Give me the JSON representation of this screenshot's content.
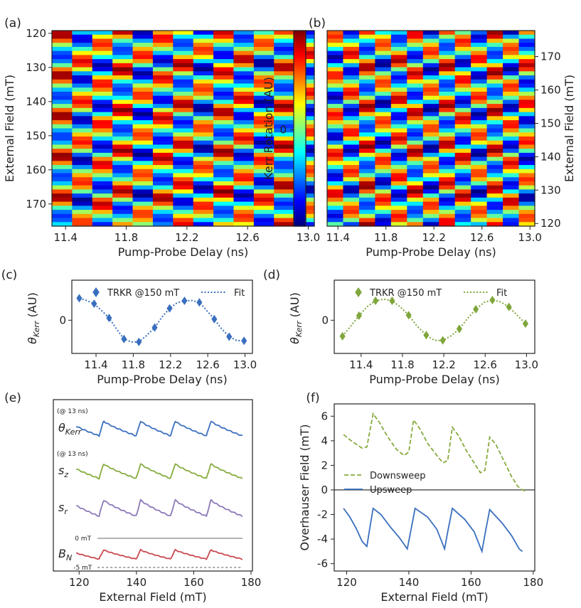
{
  "chart_data": [
    {
      "panel": "a",
      "type": "heatmap",
      "panel_label": "(a)",
      "xlabel": "Pump-Probe Delay (ns)",
      "ylabel": "External Field (mT)",
      "xticks": [
        "11.4",
        "11.8",
        "12.2",
        "12.6",
        "13.0"
      ],
      "xtick_values": [
        11.4,
        11.8,
        12.2,
        12.6,
        13.0
      ],
      "xlim": [
        11.31,
        13.04
      ],
      "yticks": [
        "120",
        "130",
        "140",
        "150",
        "160",
        "170"
      ],
      "ytick_values": [
        120,
        130,
        140,
        150,
        160,
        170
      ],
      "ylim": [
        176.5,
        119.2
      ],
      "field_start": 176.5,
      "field_end": 119.2,
      "rows": 48,
      "cols": 13
    },
    {
      "panel": "colorbar",
      "type": "heatmap",
      "label": "Kerr Rotation (AU)",
      "tick": "0",
      "colormap": "jet"
    },
    {
      "panel": "b",
      "type": "heatmap",
      "panel_label": "(b)",
      "xlabel": "Pump-Probe Delay (ns)",
      "ylabel": "External Field (mT)",
      "xticks": [
        "11.4",
        "11.8",
        "12.2",
        "12.6",
        "13.0"
      ],
      "xtick_values": [
        11.4,
        11.8,
        12.2,
        12.6,
        13.0
      ],
      "xlim": [
        11.31,
        13.04
      ],
      "yticks": [
        "120",
        "130",
        "140",
        "150",
        "160",
        "170"
      ],
      "ytick_values": [
        120,
        130,
        140,
        150,
        160,
        170
      ],
      "ylim": [
        119.2,
        177.8
      ],
      "field_start": 177.8,
      "field_end": 119.2,
      "rows": 48,
      "cols": 13
    },
    {
      "panel": "c",
      "type": "scatter",
      "panel_label": "(c)",
      "xlabel": "Pump-Probe Delay (ns)",
      "ylabel": "θ_Kerr (AU)",
      "ylabel_main": "θ",
      "ylabel_sub": "Kerr",
      "ylabel_unit": " (AU)",
      "yticks": [
        "0"
      ],
      "xticks": [
        "11.4",
        "11.8",
        "12.2",
        "12.6",
        "13.0"
      ],
      "xtick_values": [
        11.4,
        11.8,
        12.2,
        12.6,
        13.0
      ],
      "xlim": [
        11.14,
        13.08
      ],
      "ylim": [
        -1.45,
        1.75
      ],
      "color": "#3a6fbf",
      "legend": [
        "TRKR @150 mT",
        "Fit"
      ],
      "x": [
        11.22,
        11.38,
        11.54,
        11.7,
        11.86,
        12.03,
        12.19,
        12.35,
        12.51,
        12.67,
        12.83,
        12.99
      ],
      "y": [
        0.96,
        0.72,
        0.1,
        -0.82,
        -0.95,
        -0.32,
        0.52,
        0.85,
        0.78,
        0.05,
        -0.72,
        -0.9
      ],
      "fit_x": [
        11.22,
        11.3,
        11.38,
        11.46,
        11.54,
        11.62,
        11.7,
        11.78,
        11.86,
        11.94,
        12.03,
        12.11,
        12.19,
        12.27,
        12.35,
        12.43,
        12.51,
        12.59,
        12.67,
        12.75,
        12.83,
        12.91,
        12.99
      ],
      "fit_y": [
        0.96,
        0.86,
        0.72,
        0.42,
        0.1,
        -0.38,
        -0.82,
        -0.95,
        -0.95,
        -0.68,
        -0.32,
        0.15,
        0.52,
        0.76,
        0.85,
        0.86,
        0.78,
        0.42,
        0.05,
        -0.38,
        -0.72,
        -0.88,
        -0.9
      ]
    },
    {
      "panel": "d",
      "type": "scatter",
      "panel_label": "(d)",
      "xlabel": "Pump-Probe Delay (ns)",
      "ylabel": "θ_Kerr (AU)",
      "ylabel_main": "θ",
      "ylabel_sub": "Kerr",
      "ylabel_unit": " (AU)",
      "yticks": [
        "0"
      ],
      "xticks": [
        "11.4",
        "11.8",
        "12.2",
        "12.6",
        "13.0"
      ],
      "xtick_values": [
        11.4,
        11.8,
        12.2,
        12.6,
        13.0
      ],
      "xlim": [
        11.14,
        13.08
      ],
      "ylim": [
        -1.45,
        1.75
      ],
      "color": "#7fa63b",
      "legend": [
        "TRKR @150 mT",
        "Fit"
      ],
      "x": [
        11.22,
        11.38,
        11.54,
        11.7,
        11.86,
        12.03,
        12.19,
        12.35,
        12.51,
        12.67,
        12.83,
        12.99
      ],
      "y": [
        -0.7,
        0.2,
        0.85,
        0.85,
        0.22,
        -0.65,
        -0.88,
        -0.38,
        0.48,
        0.88,
        0.58,
        -0.15
      ],
      "fit_x": [
        11.22,
        11.3,
        11.38,
        11.46,
        11.54,
        11.62,
        11.7,
        11.78,
        11.86,
        11.94,
        12.03,
        12.11,
        12.19,
        12.27,
        12.35,
        12.43,
        12.51,
        12.59,
        12.67,
        12.75,
        12.83,
        12.91,
        12.99
      ],
      "fit_y": [
        -0.7,
        -0.25,
        0.2,
        0.6,
        0.85,
        0.92,
        0.85,
        0.58,
        0.22,
        -0.25,
        -0.65,
        -0.88,
        -0.88,
        -0.68,
        -0.38,
        0.08,
        0.48,
        0.78,
        0.88,
        0.8,
        0.58,
        0.22,
        -0.15
      ]
    },
    {
      "panel": "e",
      "type": "line",
      "panel_label": "(e)",
      "xlabel": "External Field (mT)",
      "xticks": [
        "120",
        "140",
        "160",
        "180"
      ],
      "xtick_values": [
        120,
        140,
        160,
        180
      ],
      "xlim": [
        111,
        180.5
      ],
      "traces_x_range": [
        119,
        177
      ],
      "cusps": [
        127,
        140,
        152,
        164.5,
        177
      ],
      "series": [
        {
          "name": "θKerr",
          "label_main": "θ",
          "label_sub": "Kerr",
          "note": "(@ 13 ns)",
          "color": "#3a6fbf"
        },
        {
          "name": "sz",
          "label_main": "s",
          "label_sub": "z",
          "note": "(@ 13 ns)",
          "color": "#86ab3e"
        },
        {
          "name": "sr",
          "label_main": "s",
          "label_sub": "r",
          "note": "",
          "color": "#8c78b8"
        },
        {
          "name": "BN",
          "label_main": "B",
          "label_sub": "N",
          "note": "",
          "color": "#c9484f"
        }
      ],
      "refs": [
        {
          "label": "0 mT",
          "style": "solid"
        },
        {
          "label": "-5 mT",
          "style": "dashed"
        }
      ]
    },
    {
      "panel": "f",
      "type": "line",
      "panel_label": "(f)",
      "xlabel": "External Field (mT)",
      "ylabel": "Overhauser Field (mT)",
      "xticks": [
        "120",
        "140",
        "160",
        "180"
      ],
      "xtick_values": [
        120,
        140,
        160,
        180
      ],
      "yticks": [
        "6",
        "4",
        "2",
        "0",
        "-2",
        "-4",
        "-6"
      ],
      "ytick_values": [
        6,
        4,
        2,
        0,
        -2,
        -4,
        -6
      ],
      "xlim": [
        116,
        180.5
      ],
      "ylim": [
        -6.6,
        7.0
      ],
      "series": [
        {
          "name": "Downsweep",
          "style": "dashed",
          "color": "#86ab3e",
          "x": [
            119,
            122,
            125,
            126.5,
            128.5,
            130.5,
            133,
            136,
            138.5,
            140,
            141.5,
            143.5,
            146,
            149,
            151,
            152.5,
            154,
            156,
            158.5,
            161,
            163,
            164.5,
            166,
            168,
            170.5,
            173,
            175,
            176.5,
            177.5
          ],
          "y": [
            4.5,
            3.9,
            3.4,
            3.5,
            6.2,
            5.5,
            4.4,
            3.3,
            2.8,
            3.1,
            5.7,
            5.0,
            3.8,
            2.8,
            2.2,
            2.4,
            5.1,
            4.4,
            3.2,
            2.2,
            1.4,
            1.6,
            4.3,
            3.7,
            2.4,
            1.1,
            0.3,
            0.0,
            -0.1
          ]
        },
        {
          "name": "Upsweep",
          "style": "solid",
          "color": "#3a6fbf",
          "x": [
            119,
            121,
            123,
            125,
            126.5,
            127.5,
            128.5,
            131,
            134,
            137,
            139.5,
            140.5,
            142,
            146,
            149,
            151.5,
            152.5,
            154,
            158,
            161,
            163.5,
            164.5,
            166,
            170,
            173,
            175.5,
            176.5
          ],
          "y": [
            -1.5,
            -2.2,
            -3.1,
            -4.2,
            -4.6,
            -3.0,
            -1.5,
            -2.0,
            -3.0,
            -3.9,
            -4.8,
            -3.5,
            -1.5,
            -2.2,
            -3.2,
            -4.8,
            -3.4,
            -1.5,
            -2.4,
            -3.4,
            -5.0,
            -3.6,
            -1.6,
            -2.7,
            -3.7,
            -4.8,
            -5.0
          ]
        }
      ]
    }
  ]
}
